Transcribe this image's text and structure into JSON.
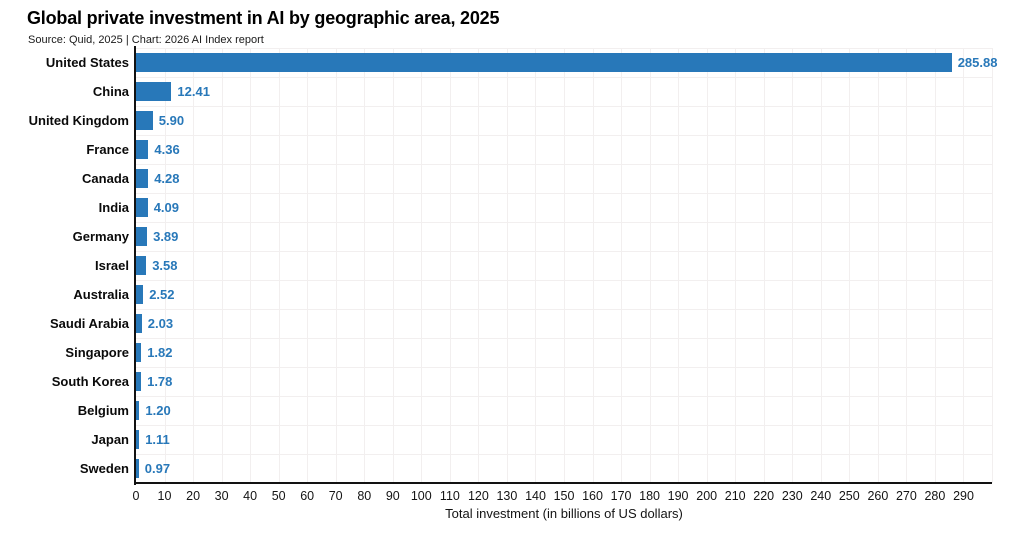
{
  "title": "Global private investment in AI by geographic area, 2025",
  "subtitle": "Source: Quid, 2025 | Chart: 2026 AI Index report",
  "chart_data": {
    "type": "bar",
    "orientation": "horizontal",
    "title": "Global private investment in AI by geographic area, 2025",
    "subtitle": "Source: Quid, 2025 | Chart: 2026 AI Index report",
    "categories": [
      "United States",
      "China",
      "United Kingdom",
      "France",
      "Canada",
      "India",
      "Germany",
      "Israel",
      "Australia",
      "Saudi Arabia",
      "Singapore",
      "South Korea",
      "Belgium",
      "Japan",
      "Sweden"
    ],
    "values": [
      285.88,
      12.41,
      5.9,
      4.36,
      4.28,
      4.09,
      3.89,
      3.58,
      2.52,
      2.03,
      1.82,
      1.78,
      1.2,
      1.11,
      0.97
    ],
    "value_labels": [
      "285.88",
      "12.41",
      "5.90",
      "4.36",
      "4.28",
      "4.09",
      "3.89",
      "3.58",
      "2.52",
      "2.03",
      "1.82",
      "1.78",
      "1.20",
      "1.11",
      "0.97"
    ],
    "xlabel": "Total investment (in billions of US dollars)",
    "ylabel": "",
    "xticks": [
      0,
      10,
      20,
      30,
      40,
      50,
      60,
      70,
      80,
      90,
      100,
      110,
      120,
      130,
      140,
      150,
      160,
      170,
      180,
      190,
      200,
      210,
      220,
      230,
      240,
      250,
      260,
      270,
      280,
      290
    ],
    "xlim": [
      0,
      300
    ],
    "grid": true,
    "legend": "none",
    "bar_color": "#2878b9",
    "value_color": "#2878b9",
    "grid_color": "#f2efef",
    "axis_color": "#121212"
  }
}
